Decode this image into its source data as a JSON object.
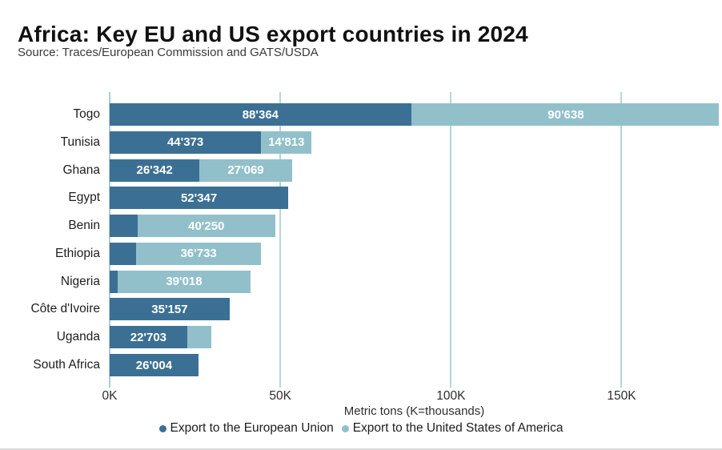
{
  "header": {
    "title": "Africa: Key EU and US export countries in 2024",
    "source": "Source: Traces/European Commission and GATS/USDA"
  },
  "colors": {
    "eu_series": "#3b7094",
    "us_series": "#91c0cb",
    "gridline": "#b7d5de",
    "zero_gridline": "#aecbd6",
    "value_label_text": "#ffffff",
    "title_text": "#111111",
    "background": "#ffffff"
  },
  "chart_data": {
    "type": "bar",
    "orientation": "horizontal",
    "stacked": true,
    "title": "Africa: Key EU and US export countries in 2024",
    "subtitle": "Source: Traces/European Commission and GATS/USDA",
    "xlabel": "Metric tons (K=thousands)",
    "ylabel": "",
    "xlim": [
      0,
      178500
    ],
    "grid": true,
    "legend_position": "bottom",
    "categories": [
      "Togo",
      "Tunisia",
      "Ghana",
      "Egypt",
      "Benin",
      "Ethiopia",
      "Nigeria",
      "Côte d'Ivoire",
      "Uganda",
      "South Africa"
    ],
    "x_ticks": [
      {
        "value": 0,
        "label": "0K"
      },
      {
        "value": 50000,
        "label": "50K"
      },
      {
        "value": 100000,
        "label": "100K"
      },
      {
        "value": 150000,
        "label": "150K"
      }
    ],
    "series": [
      {
        "name": "Export to the European Union",
        "color": "#3b7094",
        "values": [
          88364,
          44373,
          26342,
          52347,
          8200,
          7700,
          2300,
          35157,
          22703,
          26004
        ],
        "labels": [
          "88'364",
          "44'373",
          "26'342",
          "52'347",
          "",
          "",
          "",
          "35'157",
          "22'703",
          "26'004"
        ]
      },
      {
        "name": "Export to the United States of America",
        "color": "#91c0cb",
        "values": [
          90638,
          14813,
          27069,
          0,
          40250,
          36733,
          39018,
          0,
          7100,
          0
        ],
        "labels": [
          "90'638",
          "14'813",
          "27'069",
          "",
          "40'250",
          "36'733",
          "39'018",
          "",
          "",
          ""
        ]
      }
    ]
  },
  "legend": {
    "items": [
      {
        "label": "Export to the European Union",
        "color": "#3b7094"
      },
      {
        "label": "Export to the United States of America",
        "color": "#91c0cb"
      }
    ]
  }
}
